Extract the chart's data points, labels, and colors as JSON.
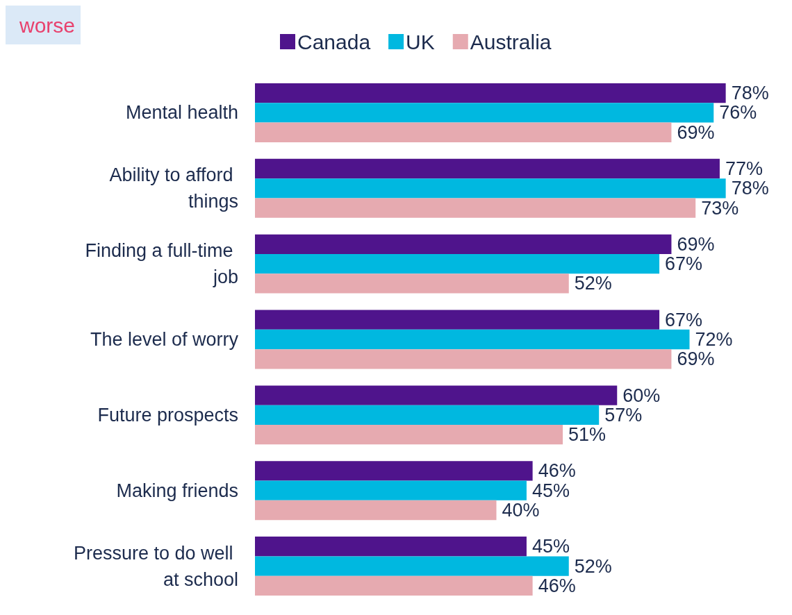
{
  "chart_data": {
    "type": "bar",
    "orientation": "horizontal",
    "annotations": [
      "worse"
    ],
    "categories": [
      "Mental health",
      "Ability to afford things",
      "Finding a full-time job",
      "The level of worry",
      "Future prospects",
      "Making friends",
      "Pressure to do well at school"
    ],
    "series": [
      {
        "name": "Canada",
        "color": "#4f148c",
        "values": [
          78,
          77,
          69,
          67,
          60,
          46,
          45
        ],
        "value_labels": [
          "78%",
          "77%",
          "69%",
          "67%",
          "60%",
          "46%",
          "45%"
        ]
      },
      {
        "name": "UK",
        "color": "#00b8e0",
        "values": [
          76,
          78,
          67,
          72,
          57,
          45,
          52
        ],
        "value_labels": [
          "76%",
          "78%",
          "67%",
          "72%",
          "57%",
          "45%",
          "52%"
        ]
      },
      {
        "name": "Australia",
        "color": "#e6aab0",
        "values": [
          69,
          73,
          52,
          69,
          51,
          40,
          46
        ],
        "value_labels": [
          "69%",
          "73%",
          "52%",
          "69%",
          "51%",
          "40%",
          "46%"
        ]
      }
    ],
    "legend": "top"
  }
}
